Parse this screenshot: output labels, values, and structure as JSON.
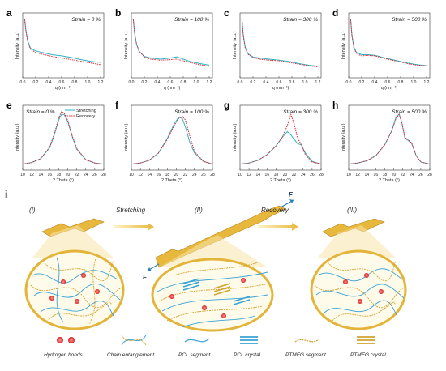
{
  "colors": {
    "stretching": "#2bb5c4",
    "recovery": "#e0303e",
    "pcl": "#3aa3d6",
    "ptmeg": "#d1a230",
    "bond": "#e23b3b",
    "specimen": "#e8b83c"
  },
  "chart_data": [
    {
      "id": "a",
      "type": "line",
      "strain_label": "Strain = 0 %",
      "xlabel": "q (nm⁻¹)",
      "ylabel": "Intensity (a.u.)",
      "xlim": [
        0,
        1.25
      ],
      "xticks": [
        "0.0",
        "0.2",
        "0.4",
        "0.6",
        "0.8",
        "1.0",
        "1.2"
      ],
      "series": [
        {
          "key": "stretching",
          "x": [
            0.03,
            0.05,
            0.08,
            0.12,
            0.2,
            0.3,
            0.45,
            0.6,
            0.75,
            0.9,
            1.05,
            1.2
          ],
          "y": [
            1.0,
            0.8,
            0.6,
            0.48,
            0.43,
            0.4,
            0.36,
            0.34,
            0.31,
            0.27,
            0.24,
            0.22
          ]
        },
        {
          "key": "recovery",
          "x": [
            0.03,
            0.05,
            0.08,
            0.12,
            0.2,
            0.3,
            0.45,
            0.6,
            0.75,
            0.9,
            1.05,
            1.2
          ],
          "y": [
            1.0,
            0.78,
            0.58,
            0.46,
            0.4,
            0.37,
            0.33,
            0.3,
            0.27,
            0.24,
            0.21,
            0.18
          ]
        }
      ]
    },
    {
      "id": "b",
      "type": "line",
      "strain_label": "Strain = 100 %",
      "xlabel": "q (nm⁻¹)",
      "ylabel": "Intensity (a.u.)",
      "xlim": [
        0,
        1.25
      ],
      "xticks": [
        "0.0",
        "0.2",
        "0.4",
        "0.6",
        "0.8",
        "1.0",
        "1.2"
      ],
      "series": [
        {
          "key": "stretching",
          "x": [
            0.03,
            0.05,
            0.08,
            0.12,
            0.2,
            0.3,
            0.45,
            0.6,
            0.7,
            0.8,
            0.9,
            1.05,
            1.2
          ],
          "y": [
            1.0,
            0.75,
            0.55,
            0.42,
            0.33,
            0.3,
            0.28,
            0.3,
            0.32,
            0.28,
            0.24,
            0.2,
            0.17
          ]
        },
        {
          "key": "recovery",
          "x": [
            0.03,
            0.05,
            0.08,
            0.12,
            0.2,
            0.3,
            0.45,
            0.6,
            0.7,
            0.8,
            0.9,
            1.05,
            1.2
          ],
          "y": [
            1.0,
            0.75,
            0.55,
            0.42,
            0.32,
            0.28,
            0.26,
            0.27,
            0.28,
            0.25,
            0.22,
            0.18,
            0.15
          ]
        }
      ]
    },
    {
      "id": "c",
      "type": "line",
      "strain_label": "Strain = 300 %",
      "xlabel": "q (nm⁻¹)",
      "ylabel": "Intensity (a.u.)",
      "xlim": [
        0,
        1.25
      ],
      "xticks": [
        "0.0",
        "0.2",
        "0.4",
        "0.6",
        "0.8",
        "1.0",
        "1.2"
      ],
      "series": [
        {
          "key": "stretching",
          "x": [
            0.03,
            0.05,
            0.08,
            0.12,
            0.2,
            0.3,
            0.45,
            0.6,
            0.75,
            0.9,
            1.05,
            1.2
          ],
          "y": [
            1.0,
            0.72,
            0.5,
            0.38,
            0.32,
            0.3,
            0.28,
            0.26,
            0.24,
            0.2,
            0.17,
            0.15
          ]
        },
        {
          "key": "recovery",
          "x": [
            0.03,
            0.05,
            0.08,
            0.12,
            0.2,
            0.3,
            0.45,
            0.6,
            0.75,
            0.9,
            1.05,
            1.2
          ],
          "y": [
            1.0,
            0.7,
            0.48,
            0.37,
            0.31,
            0.28,
            0.26,
            0.25,
            0.22,
            0.19,
            0.16,
            0.14
          ]
        }
      ]
    },
    {
      "id": "d",
      "type": "line",
      "strain_label": "Strain = 500 %",
      "xlabel": "q (nm⁻¹)",
      "ylabel": "Intensity (a.u.)",
      "xlim": [
        0,
        1.25
      ],
      "xticks": [
        "0.0",
        "0.2",
        "0.4",
        "0.6",
        "0.8",
        "1.0",
        "1.2"
      ],
      "series": [
        {
          "key": "stretching",
          "x": [
            0.03,
            0.05,
            0.08,
            0.12,
            0.2,
            0.3,
            0.4,
            0.5,
            0.6,
            0.75,
            0.9,
            1.05,
            1.2
          ],
          "y": [
            1.0,
            0.72,
            0.5,
            0.4,
            0.36,
            0.36,
            0.35,
            0.32,
            0.29,
            0.25,
            0.21,
            0.18,
            0.16
          ]
        },
        {
          "key": "recovery",
          "x": [
            0.03,
            0.05,
            0.08,
            0.12,
            0.2,
            0.3,
            0.4,
            0.5,
            0.6,
            0.75,
            0.9,
            1.05,
            1.2
          ],
          "y": [
            1.0,
            0.7,
            0.48,
            0.38,
            0.34,
            0.35,
            0.34,
            0.31,
            0.28,
            0.24,
            0.2,
            0.17,
            0.16
          ]
        }
      ]
    },
    {
      "id": "e",
      "type": "line",
      "strain_label": "Strain = 0 %",
      "xlabel": "2 Theta (°)",
      "ylabel": "Intensity (a.u.)",
      "xlim": [
        10,
        28
      ],
      "xticks": [
        "10",
        "12",
        "14",
        "16",
        "18",
        "20",
        "22",
        "24",
        "26",
        "28"
      ],
      "legend": {
        "position": "top-right",
        "entries": [
          "Stretching",
          "Recovery"
        ]
      },
      "series": [
        {
          "key": "stretching",
          "x": [
            10,
            12,
            14,
            16,
            17,
            18,
            18.6,
            19.2,
            20,
            21,
            22,
            24,
            26,
            28
          ],
          "y": [
            0.05,
            0.08,
            0.15,
            0.35,
            0.58,
            0.85,
            0.95,
            0.95,
            0.82,
            0.55,
            0.32,
            0.13,
            0.07,
            0.05
          ]
        },
        {
          "key": "recovery",
          "x": [
            10,
            12,
            14,
            16,
            17,
            18,
            18.6,
            19.2,
            20,
            21,
            22,
            24,
            26,
            28
          ],
          "y": [
            0.05,
            0.08,
            0.15,
            0.36,
            0.6,
            0.88,
            1.0,
            0.98,
            0.84,
            0.56,
            0.33,
            0.13,
            0.07,
            0.05
          ]
        }
      ]
    },
    {
      "id": "f",
      "type": "line",
      "strain_label": "Strain = 100 %",
      "xlabel": "2 Theta (°)",
      "ylabel": "Intensity (a.u.)",
      "xlim": [
        10,
        28
      ],
      "xticks": [
        "10",
        "12",
        "14",
        "16",
        "18",
        "20",
        "22",
        "24",
        "26",
        "28"
      ],
      "series": [
        {
          "key": "stretching",
          "x": [
            10,
            12,
            14,
            16,
            18,
            19.5,
            20.5,
            21.3,
            22,
            23,
            24,
            26,
            28
          ],
          "y": [
            0.05,
            0.07,
            0.12,
            0.25,
            0.52,
            0.78,
            0.9,
            0.88,
            0.72,
            0.44,
            0.25,
            0.1,
            0.05
          ]
        },
        {
          "key": "recovery",
          "x": [
            10,
            12,
            14,
            16,
            18,
            19.5,
            20.5,
            21.3,
            22,
            23,
            24,
            26,
            28
          ],
          "y": [
            0.05,
            0.07,
            0.12,
            0.25,
            0.5,
            0.75,
            0.88,
            0.92,
            0.85,
            0.55,
            0.28,
            0.1,
            0.05
          ]
        }
      ]
    },
    {
      "id": "g",
      "type": "line",
      "strain_label": "Strain = 300 %",
      "xlabel": "2 Theta (°)",
      "ylabel": "Intensity (a.u.)",
      "xlim": [
        10,
        28
      ],
      "xticks": [
        "10",
        "12",
        "14",
        "16",
        "18",
        "20",
        "22",
        "24",
        "26",
        "28"
      ],
      "series": [
        {
          "key": "stretching",
          "x": [
            10,
            12,
            14,
            16,
            18,
            19.5,
            20.5,
            21.3,
            22,
            22.8,
            23.6,
            24.5,
            26,
            28
          ],
          "y": [
            0.05,
            0.07,
            0.12,
            0.22,
            0.38,
            0.55,
            0.64,
            0.58,
            0.5,
            0.42,
            0.4,
            0.25,
            0.1,
            0.05
          ]
        },
        {
          "key": "recovery",
          "x": [
            10,
            12,
            14,
            16,
            18,
            19.5,
            20.5,
            21.3,
            22,
            22.8,
            23.6,
            24.5,
            26,
            28
          ],
          "y": [
            0.05,
            0.07,
            0.12,
            0.22,
            0.38,
            0.56,
            0.75,
            0.95,
            0.78,
            0.52,
            0.4,
            0.22,
            0.09,
            0.05
          ]
        }
      ]
    },
    {
      "id": "h",
      "type": "line",
      "strain_label": "Strain = 500 %",
      "xlabel": "2 Theta (°)",
      "ylabel": "Intensity (a.u.)",
      "xlim": [
        10,
        28
      ],
      "xticks": [
        "10",
        "12",
        "14",
        "16",
        "18",
        "20",
        "22",
        "24",
        "26",
        "28"
      ],
      "series": [
        {
          "key": "stretching",
          "x": [
            10,
            12,
            14,
            16,
            18,
            19.5,
            20.5,
            21.2,
            21.8,
            22.5,
            23.2,
            24,
            25,
            26,
            28
          ],
          "y": [
            0.05,
            0.07,
            0.11,
            0.2,
            0.4,
            0.65,
            0.9,
            0.96,
            0.8,
            0.52,
            0.48,
            0.42,
            0.2,
            0.09,
            0.05
          ]
        },
        {
          "key": "recovery",
          "x": [
            10,
            12,
            14,
            16,
            18,
            19.5,
            20.5,
            21.2,
            21.8,
            22.5,
            23.2,
            24,
            25,
            26,
            28
          ],
          "y": [
            0.05,
            0.07,
            0.11,
            0.2,
            0.4,
            0.64,
            0.88,
            0.95,
            0.8,
            0.53,
            0.5,
            0.43,
            0.2,
            0.09,
            0.05
          ]
        }
      ]
    }
  ],
  "schematic": {
    "panel_label": "i",
    "stages": [
      "(I)",
      "(II)",
      "(III)"
    ],
    "steps": [
      "Stretching",
      "Recovery"
    ],
    "force_label": "F",
    "legend": [
      "Hydrogen bonds",
      "Chain entanglement",
      "PCL segment",
      "PCL crystal",
      "PTMEG segment",
      "PTMEG crystal"
    ]
  }
}
